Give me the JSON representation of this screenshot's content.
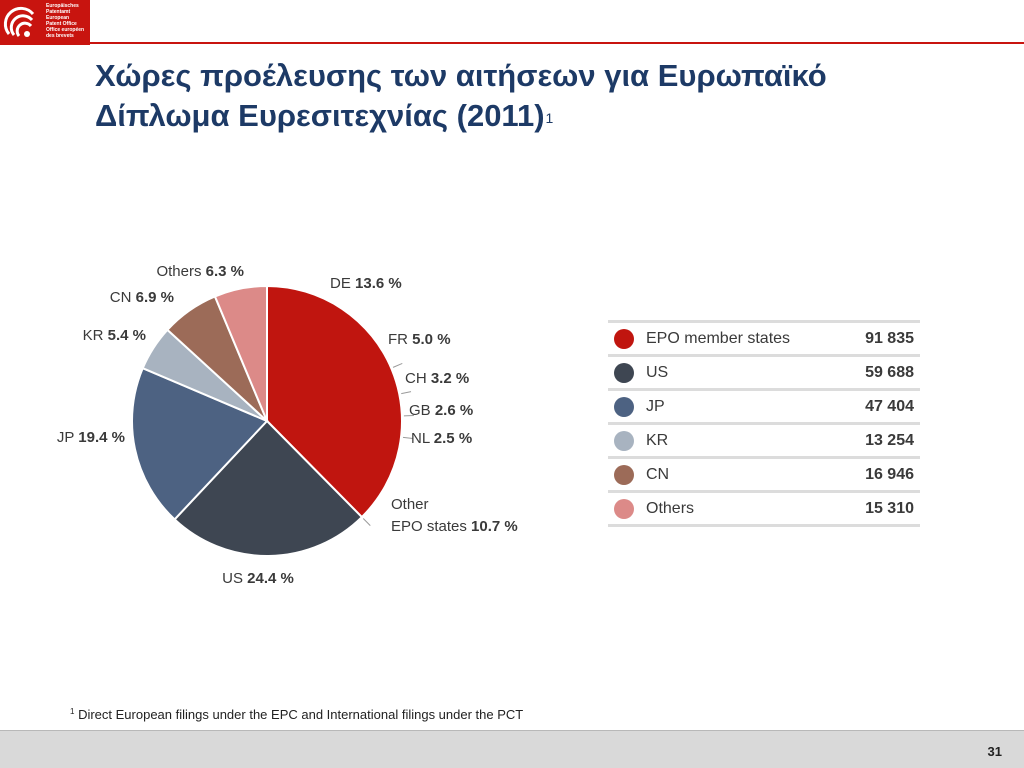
{
  "logo": {
    "lines": [
      "Europäisches",
      "Patentamt",
      "European",
      "Patent Office",
      "Office européen",
      "des brevets"
    ],
    "color": "#c8140f"
  },
  "title": {
    "line1": "Χώρες προέλευσης των αιτήσεων για Ευρωπαϊκό",
    "line2": "Δίπλωμα Ευρεσιτεχνίας (2011)",
    "superscript": "1"
  },
  "chart_data": {
    "type": "pie",
    "title": "",
    "slices": [
      {
        "name": "DE",
        "value": 13.6,
        "display": "13.6 %",
        "color": "#c0150f"
      },
      {
        "name": "FR",
        "value": 5.0,
        "display": "5.0 %",
        "color": "#c0150f"
      },
      {
        "name": "CH",
        "value": 3.2,
        "display": "3.2 %",
        "color": "#c0150f"
      },
      {
        "name": "GB",
        "value": 2.6,
        "display": "2.6 %",
        "color": "#c0150f"
      },
      {
        "name": "NL",
        "value": 2.5,
        "display": "2.5 %",
        "color": "#c0150f"
      },
      {
        "name": "Other EPO states",
        "label_lines": [
          "Other",
          "EPO states"
        ],
        "value": 10.7,
        "display": "10.7 %",
        "color": "#c0150f"
      },
      {
        "name": "US",
        "value": 24.4,
        "display": "24.4 %",
        "color": "#3e4652"
      },
      {
        "name": "JP",
        "value": 19.4,
        "display": "19.4 %",
        "color": "#4d6282"
      },
      {
        "name": "KR",
        "value": 5.4,
        "display": "5.4 %",
        "color": "#a8b3c0"
      },
      {
        "name": "CN",
        "value": 6.9,
        "display": "6.9 %",
        "color": "#9c6b58"
      },
      {
        "name": "Others",
        "value": 6.3,
        "display": "6.3 %",
        "color": "#dc8a88"
      }
    ],
    "legend": [
      {
        "label": "EPO member states",
        "value": "91 835",
        "color": "#c0150f"
      },
      {
        "label": "US",
        "value": "59 688",
        "color": "#3e4652"
      },
      {
        "label": "JP",
        "value": "47 404",
        "color": "#4d6282"
      },
      {
        "label": "KR",
        "value": "13 254",
        "color": "#a8b3c0"
      },
      {
        "label": "CN",
        "value": "16 946",
        "color": "#9c6b58"
      },
      {
        "label": "Others",
        "value": "15 310",
        "color": "#dc8a88"
      }
    ],
    "legend_placement": "right"
  },
  "footnote": {
    "marker": "1",
    "text": "Direct European filings under the EPC and International filings under the PCT"
  },
  "page_number": "31"
}
